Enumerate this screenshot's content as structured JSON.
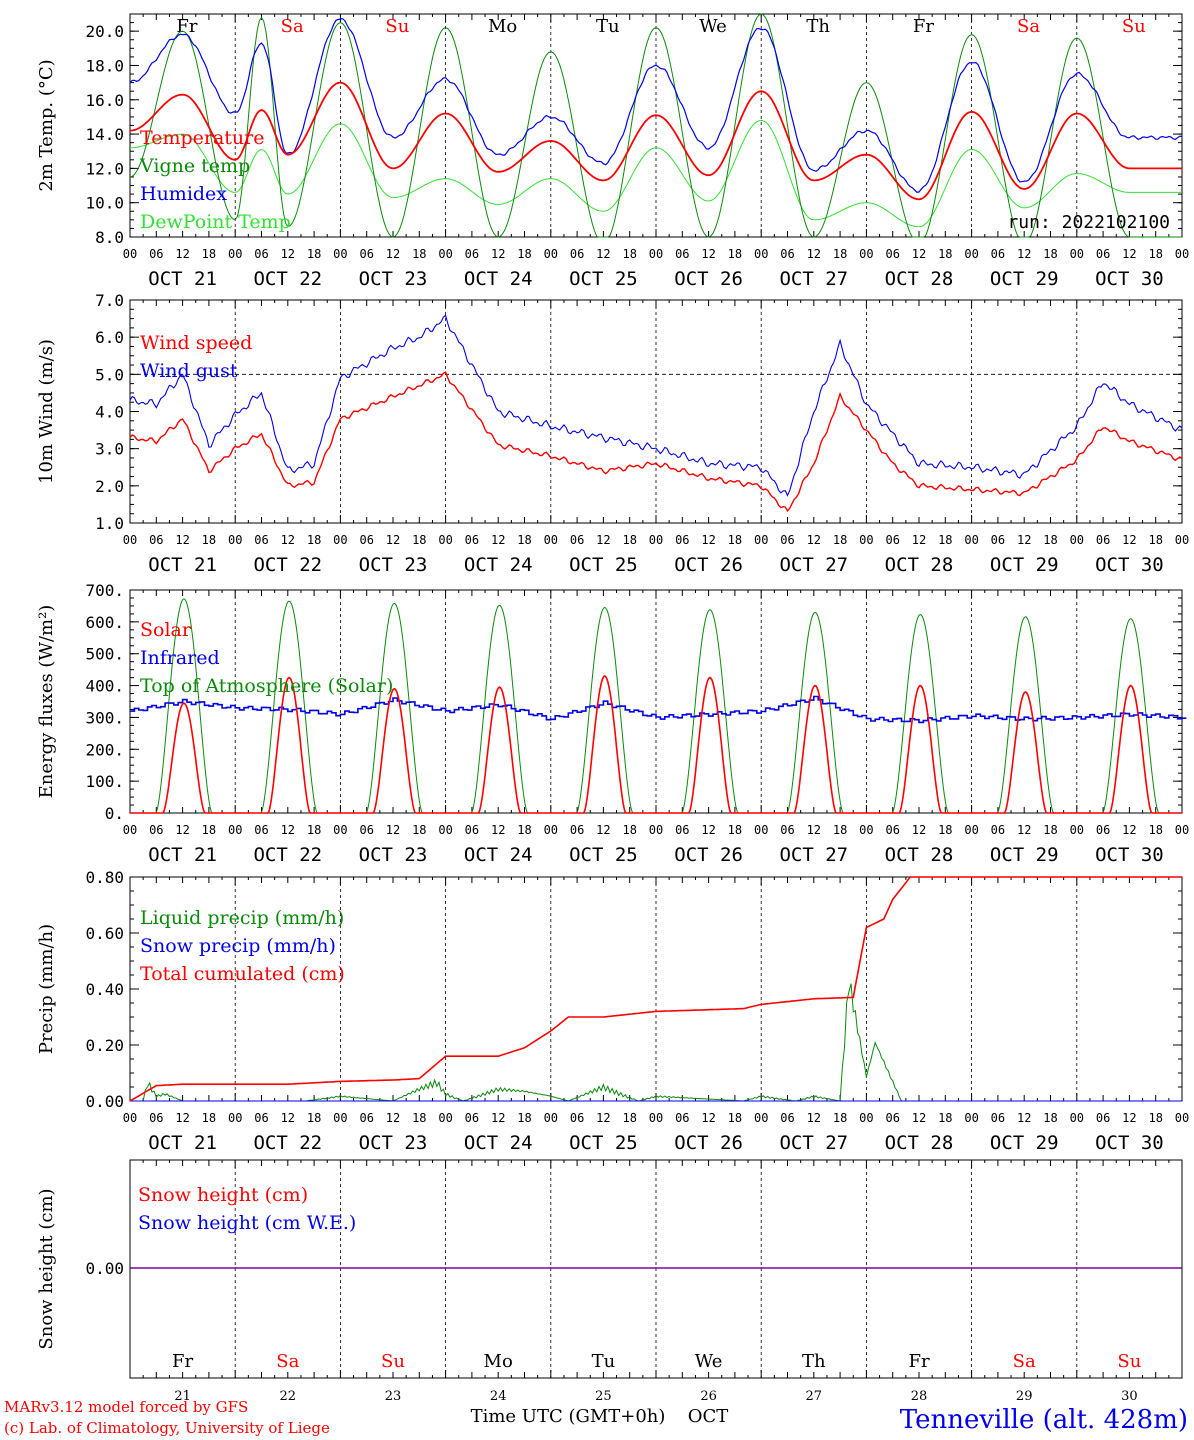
{
  "colors": {
    "red": "#ff0000",
    "green_dark": "#0a8a0a",
    "green_light": "#33e033",
    "blue": "#0000ee",
    "purple": "#8000a0",
    "axis": "#000000"
  },
  "time_axis": {
    "hour_ticks": [
      "00",
      "06",
      "12",
      "18"
    ],
    "end_tick": "00",
    "dates": [
      "OCT 21",
      "OCT 22",
      "OCT 23",
      "OCT 24",
      "OCT 25",
      "OCT 26",
      "OCT 27",
      "OCT 28",
      "OCT 29",
      "OCT 30"
    ],
    "weekdays": [
      "Fr",
      "Sa",
      "Su",
      "Mo",
      "Tu",
      "We",
      "Th",
      "Fr",
      "Sa",
      "Su"
    ],
    "weekday_colors": [
      "black",
      "red",
      "red",
      "black",
      "black",
      "black",
      "black",
      "black",
      "red",
      "red"
    ],
    "day_numbers": [
      "21",
      "22",
      "23",
      "24",
      "25",
      "26",
      "27",
      "28",
      "29",
      "30"
    ],
    "month_label": "OCT",
    "xlabel": "Time UTC (GMT+0h)"
  },
  "footer": {
    "model": "MARv3.12 model forced by GFS",
    "copyright": "(c) Lab. of Climatology, University of Liege",
    "location": "Tenneville (alt. 428m)"
  },
  "chart_data": [
    {
      "type": "line",
      "ylabel": "2m Temp. (°C)",
      "ylim": [
        8.0,
        21.0
      ],
      "yticks": [
        "8.0",
        "10.0",
        "12.0",
        "14.0",
        "16.0",
        "18.0",
        "20.0"
      ],
      "annotation": "run: 2022102100",
      "x_unit": "hours since OCT 21 00 UTC",
      "series": [
        {
          "name": "Temperature",
          "color": "red",
          "x": [
            0,
            12,
            24,
            30,
            36,
            48,
            60,
            72,
            84,
            96,
            108,
            120,
            132,
            144,
            156,
            168,
            180,
            192,
            204,
            216,
            228,
            240
          ],
          "values": [
            14.2,
            16.3,
            12.5,
            15.4,
            12.8,
            17.0,
            12.0,
            15.2,
            11.8,
            13.6,
            11.3,
            15.1,
            11.6,
            16.5,
            11.3,
            12.8,
            10.2,
            15.3,
            10.8,
            15.2,
            12.0,
            12.0
          ]
        },
        {
          "name": "Vigne temp",
          "color": "green_dark",
          "x": [
            0,
            12,
            24,
            30,
            36,
            48,
            60,
            72,
            84,
            96,
            108,
            120,
            132,
            144,
            156,
            168,
            180,
            192,
            204,
            216,
            228,
            240
          ],
          "values": [
            11.5,
            20.0,
            9.0,
            20.8,
            8.6,
            20.5,
            8.0,
            20.2,
            8.0,
            18.8,
            7.6,
            20.2,
            8.0,
            21.0,
            8.0,
            17.0,
            7.6,
            19.8,
            7.6,
            19.6,
            8.0,
            8.0
          ]
        },
        {
          "name": "Humidex",
          "color": "blue",
          "x": [
            0,
            12,
            24,
            30,
            36,
            48,
            60,
            72,
            84,
            96,
            108,
            120,
            132,
            144,
            156,
            168,
            180,
            192,
            204,
            216,
            228,
            240
          ],
          "values": [
            17.0,
            19.8,
            15.2,
            19.3,
            12.8,
            20.7,
            13.8,
            17.2,
            12.8,
            15.0,
            12.3,
            18.0,
            13.2,
            20.2,
            11.9,
            14.2,
            10.7,
            18.2,
            11.2,
            17.5,
            13.8,
            13.8
          ]
        },
        {
          "name": "DewPoint Temp",
          "color": "green_light",
          "x": [
            0,
            12,
            24,
            30,
            36,
            48,
            60,
            72,
            84,
            96,
            108,
            120,
            132,
            144,
            156,
            168,
            180,
            192,
            204,
            216,
            228,
            240
          ],
          "values": [
            13.2,
            14.0,
            10.6,
            13.1,
            10.5,
            14.6,
            10.3,
            11.4,
            9.9,
            11.4,
            9.5,
            13.2,
            10.1,
            14.8,
            9.0,
            10.0,
            8.6,
            13.1,
            9.7,
            11.7,
            10.6,
            10.6
          ]
        }
      ]
    },
    {
      "type": "line",
      "ylabel": "10m Wind (m/s)",
      "ylim": [
        1.0,
        7.0
      ],
      "yticks": [
        "1.0",
        "2.0",
        "3.0",
        "4.0",
        "5.0",
        "6.0",
        "7.0"
      ],
      "ref_line": 5.0,
      "series": [
        {
          "name": "Wind speed",
          "color": "red",
          "x": [
            0,
            6,
            12,
            18,
            24,
            30,
            36,
            42,
            48,
            60,
            72,
            84,
            96,
            108,
            120,
            132,
            144,
            150,
            156,
            162,
            168,
            174,
            180,
            192,
            204,
            216,
            222,
            228,
            240
          ],
          "values": [
            3.3,
            3.2,
            3.8,
            2.4,
            3.0,
            3.4,
            2.0,
            2.1,
            3.8,
            4.4,
            5.0,
            3.1,
            2.8,
            2.4,
            2.6,
            2.2,
            2.0,
            1.3,
            2.6,
            4.4,
            3.5,
            2.6,
            2.0,
            1.9,
            1.8,
            2.7,
            3.6,
            3.2,
            2.7
          ]
        },
        {
          "name": "Wind gust",
          "color": "blue",
          "x": [
            0,
            6,
            12,
            18,
            24,
            30,
            36,
            42,
            48,
            60,
            66,
            72,
            84,
            96,
            108,
            120,
            132,
            144,
            150,
            156,
            162,
            168,
            174,
            180,
            192,
            204,
            216,
            222,
            228,
            240
          ],
          "values": [
            4.3,
            4.2,
            5.0,
            3.1,
            3.9,
            4.5,
            2.4,
            2.6,
            4.9,
            5.7,
            6.0,
            6.5,
            4.0,
            3.6,
            3.3,
            3.0,
            2.6,
            2.5,
            1.7,
            4.0,
            5.8,
            4.2,
            3.4,
            2.6,
            2.5,
            2.3,
            3.6,
            4.8,
            4.2,
            3.5
          ]
        }
      ]
    },
    {
      "type": "line",
      "ylabel": "Energy fluxes (W/m²)",
      "ylim": [
        0,
        700
      ],
      "yticks": [
        "0.",
        "100.",
        "200.",
        "300.",
        "400.",
        "500.",
        "600.",
        "700."
      ],
      "series": [
        {
          "name": "Solar",
          "color": "red",
          "x": [
            0,
            12,
            24,
            36,
            48,
            60,
            72,
            84,
            96,
            108,
            120,
            132,
            144,
            156,
            168,
            180,
            192,
            204,
            216,
            228,
            240
          ],
          "values": [
            0,
            345,
            0,
            425,
            0,
            390,
            0,
            395,
            0,
            430,
            0,
            425,
            0,
            400,
            0,
            400,
            0,
            380,
            0,
            400,
            0
          ]
        },
        {
          "name": "Infrared",
          "color": "blue",
          "x": [
            0,
            12,
            24,
            36,
            48,
            60,
            72,
            84,
            96,
            108,
            120,
            132,
            144,
            156,
            168,
            180,
            192,
            204,
            216,
            228,
            240
          ],
          "values": [
            320,
            350,
            330,
            325,
            310,
            355,
            320,
            340,
            295,
            345,
            300,
            310,
            320,
            360,
            295,
            290,
            305,
            295,
            300,
            310,
            300
          ]
        },
        {
          "name": "Top of Atmosphere (Solar)",
          "color": "green_dark",
          "x": [
            0,
            12,
            24,
            36,
            48,
            60,
            72,
            84,
            96,
            108,
            120,
            132,
            144,
            156,
            168,
            180,
            192,
            204,
            216,
            228,
            240
          ],
          "values": [
            0,
            672,
            0,
            665,
            0,
            658,
            0,
            652,
            0,
            645,
            0,
            638,
            0,
            630,
            0,
            623,
            0,
            616,
            0,
            610,
            0
          ]
        }
      ]
    },
    {
      "type": "line",
      "ylabel": "Precip (mm/h)",
      "ylim": [
        0.0,
        0.8
      ],
      "yticks": [
        "0.00",
        "0.20",
        "0.40",
        "0.60",
        "0.80"
      ],
      "series": [
        {
          "name": "Liquid precip (mm/h)",
          "color": "green_dark",
          "x": [
            0,
            3,
            4,
            6,
            8,
            12,
            40,
            48,
            60,
            66,
            70,
            72,
            76,
            84,
            90,
            96,
            100,
            108,
            116,
            120,
            140,
            144,
            152,
            156,
            162,
            164,
            168,
            170,
            176,
            240
          ],
          "values": [
            0,
            0,
            0.08,
            0.02,
            0.03,
            0,
            0,
            0.02,
            0,
            0.05,
            0.08,
            0.03,
            0,
            0.05,
            0.04,
            0.02,
            0,
            0.06,
            0,
            0.02,
            0,
            0.02,
            0,
            0.02,
            0,
            0.5,
            0.1,
            0.24,
            0,
            0
          ]
        },
        {
          "name": "Snow precip (mm/h)",
          "color": "blue",
          "x": [
            0,
            240
          ],
          "values": [
            0,
            0
          ]
        },
        {
          "name": "Total cumulated (cm)",
          "color": "red",
          "x": [
            0,
            6,
            12,
            36,
            48,
            60,
            66,
            72,
            84,
            90,
            96,
            100,
            108,
            120,
            140,
            144,
            156,
            165,
            168,
            172,
            174,
            178,
            240
          ],
          "values": [
            0.0,
            0.055,
            0.06,
            0.06,
            0.07,
            0.075,
            0.08,
            0.16,
            0.16,
            0.19,
            0.25,
            0.3,
            0.3,
            0.32,
            0.33,
            0.345,
            0.365,
            0.37,
            0.62,
            0.65,
            0.72,
            0.8,
            0.8
          ]
        }
      ]
    },
    {
      "type": "line",
      "ylabel": "Snow height (cm)",
      "ytick": "0.00",
      "series": [
        {
          "name": "Snow height (cm)",
          "color": "red",
          "x": [
            0,
            240
          ],
          "values": [
            0,
            0
          ]
        },
        {
          "name": "Snow height (cm W.E.)",
          "color": "blue",
          "x": [
            0,
            240
          ],
          "values": [
            0,
            0
          ]
        }
      ]
    }
  ]
}
